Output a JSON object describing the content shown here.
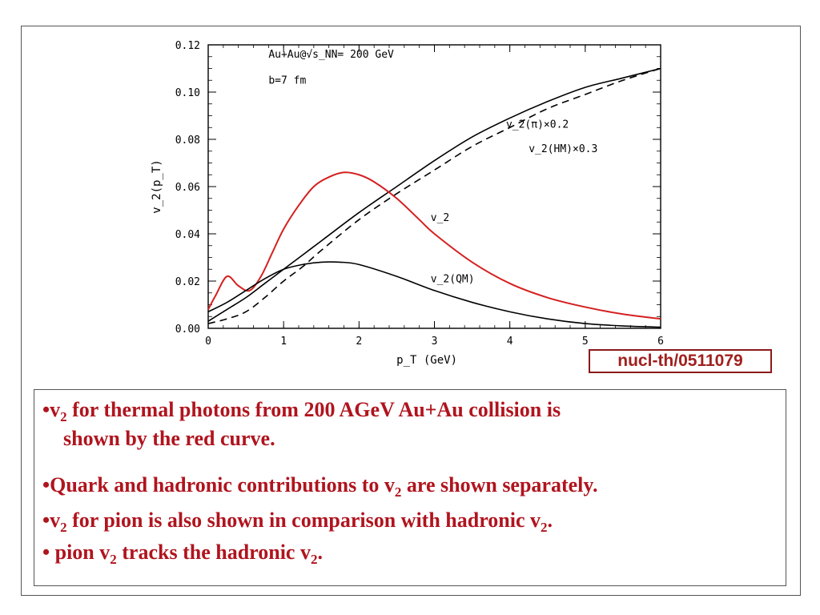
{
  "chart_data": {
    "type": "line",
    "title": "",
    "xlabel": "p_T (GeV)",
    "ylabel": "v_2(p_T)",
    "xlim": [
      0,
      6
    ],
    "ylim": [
      0,
      0.12
    ],
    "xticks": [
      "0",
      "1",
      "2",
      "3",
      "4",
      "5",
      "6"
    ],
    "yticks": [
      "0.00",
      "0.02",
      "0.04",
      "0.06",
      "0.08",
      "0.10",
      "0.12"
    ],
    "annotations": [
      "Au+Au@√s_NN= 200 GeV",
      "b=7 fm"
    ],
    "series": [
      {
        "name": "v_2(π)×0.2",
        "color": "#000000",
        "dash": "solid",
        "x": [
          0,
          0.25,
          0.5,
          0.75,
          1,
          1.5,
          2,
          2.5,
          3,
          3.5,
          4,
          4.5,
          5,
          5.5,
          6
        ],
        "y": [
          0.003,
          0.008,
          0.013,
          0.019,
          0.025,
          0.037,
          0.049,
          0.06,
          0.071,
          0.081,
          0.089,
          0.096,
          0.102,
          0.106,
          0.11
        ]
      },
      {
        "name": "v_2(HM)×0.3",
        "color": "#000000",
        "dash": "dashed",
        "x": [
          0,
          0.25,
          0.5,
          0.75,
          1,
          1.25,
          1.5,
          2,
          2.5,
          3,
          3.5,
          4,
          4.5,
          5,
          5.5,
          6
        ],
        "y": [
          0.002,
          0.004,
          0.007,
          0.013,
          0.02,
          0.026,
          0.033,
          0.046,
          0.057,
          0.067,
          0.077,
          0.085,
          0.093,
          0.099,
          0.105,
          0.11
        ]
      },
      {
        "name": "v_2",
        "color": "#d42020",
        "dash": "solid",
        "x": [
          0,
          0.1,
          0.25,
          0.4,
          0.55,
          0.7,
          0.85,
          1,
          1.2,
          1.4,
          1.6,
          1.8,
          2,
          2.2,
          2.5,
          2.8,
          3,
          3.5,
          4,
          4.5,
          5,
          5.5,
          6
        ],
        "y": [
          0.008,
          0.014,
          0.022,
          0.018,
          0.016,
          0.022,
          0.032,
          0.042,
          0.052,
          0.06,
          0.064,
          0.066,
          0.065,
          0.062,
          0.055,
          0.046,
          0.04,
          0.028,
          0.019,
          0.013,
          0.009,
          0.006,
          0.004
        ]
      },
      {
        "name": "v_2(QM)",
        "color": "#000000",
        "dash": "solid",
        "x": [
          0,
          0.25,
          0.5,
          0.75,
          1,
          1.25,
          1.5,
          1.75,
          2,
          2.5,
          3,
          3.5,
          4,
          4.5,
          5,
          5.5,
          6
        ],
        "y": [
          0.007,
          0.011,
          0.016,
          0.021,
          0.025,
          0.027,
          0.028,
          0.028,
          0.027,
          0.022,
          0.016,
          0.011,
          0.007,
          0.004,
          0.002,
          0.001,
          0.0005
        ]
      }
    ]
  },
  "reference": "nucl-th/0511079",
  "notes": [
    {
      "bullet": "•",
      "parts": [
        "v",
        "2",
        " for thermal photons from 200 AGeV   Au+Au collision is"
      ]
    },
    {
      "bullet": "",
      "parts": [
        "shown by the red curve."
      ]
    },
    {
      "bullet": "•",
      "parts": [
        "Quark and hadronic contributions to v",
        "2",
        " are shown separately."
      ]
    },
    {
      "bullet": "•",
      "parts": [
        "v",
        "2",
        " for pion is also shown in comparison with hadronic v",
        "2",
        "."
      ]
    },
    {
      "bullet": "•",
      "parts": [
        " pion v",
        "2",
        " tracks the hadronic v",
        "2",
        "."
      ]
    }
  ]
}
